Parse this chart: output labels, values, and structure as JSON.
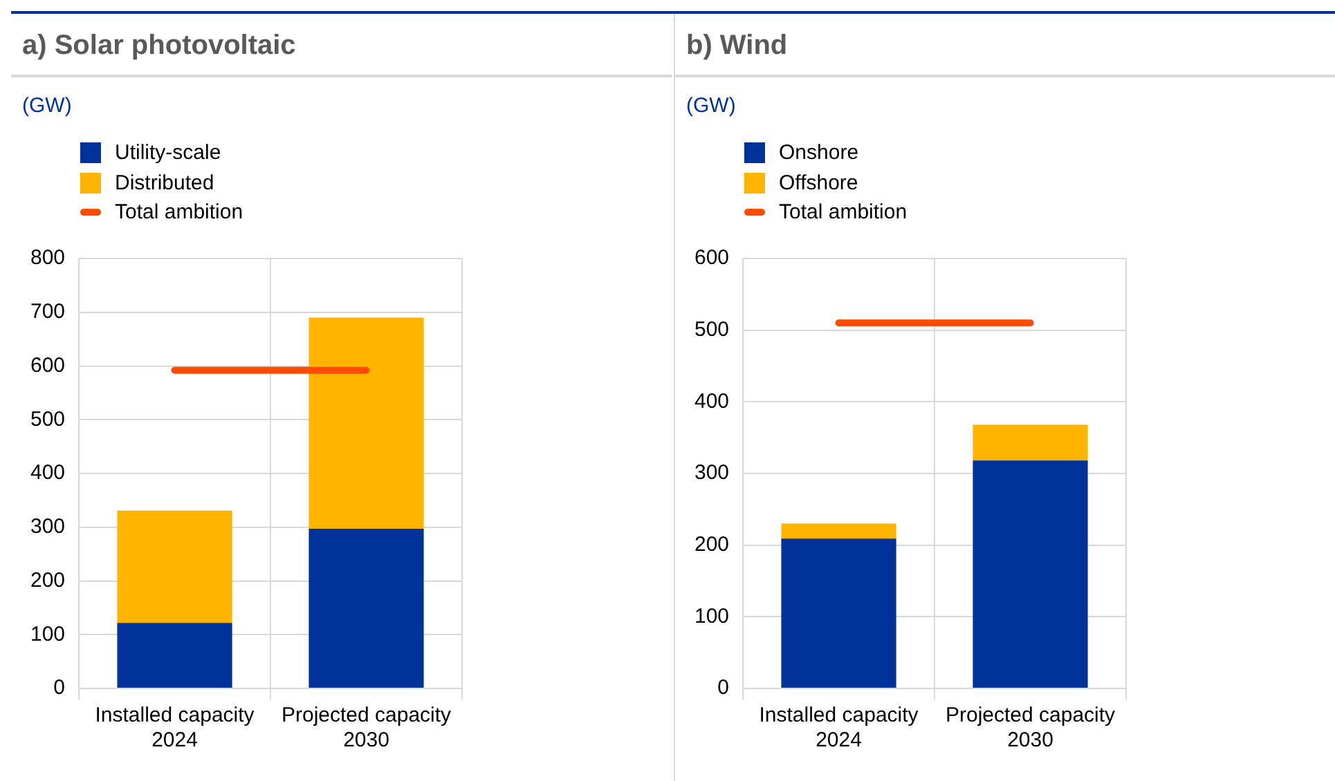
{
  "chart_data": [
    {
      "type": "bar",
      "title": "a) Solar photovoltaic",
      "ylabel": "(GW)",
      "stacked": true,
      "legend": "top left",
      "grid": true,
      "categories": [
        "Installed capacity 2024",
        "Projected capacity 2030"
      ],
      "series": [
        {
          "name": "Utility-scale",
          "color": "#003299",
          "values": [
            122,
            297
          ]
        },
        {
          "name": "Distributed",
          "color": "#ffb400",
          "values": [
            209,
            393
          ]
        },
        {
          "name": "Total ambition",
          "type": "line",
          "color": "#ff4b00",
          "values": [
            592,
            592
          ]
        }
      ],
      "ylim": [
        0,
        800
      ],
      "yticks": [
        0,
        100,
        200,
        300,
        400,
        500,
        600,
        700,
        800
      ]
    },
    {
      "type": "bar",
      "title": "b) Wind",
      "ylabel": "(GW)",
      "stacked": true,
      "legend": "top left",
      "grid": true,
      "categories": [
        "Installed capacity 2024",
        "Projected capacity 2030"
      ],
      "series": [
        {
          "name": "Onshore",
          "color": "#003299",
          "values": [
            209,
            318
          ]
        },
        {
          "name": "Offshore",
          "color": "#ffb400",
          "values": [
            21,
            50
          ]
        },
        {
          "name": "Total ambition",
          "type": "line",
          "color": "#ff4b00",
          "values": [
            510,
            510
          ]
        }
      ],
      "ylim": [
        0,
        600
      ],
      "yticks": [
        0,
        100,
        200,
        300,
        400,
        500,
        600
      ]
    }
  ]
}
